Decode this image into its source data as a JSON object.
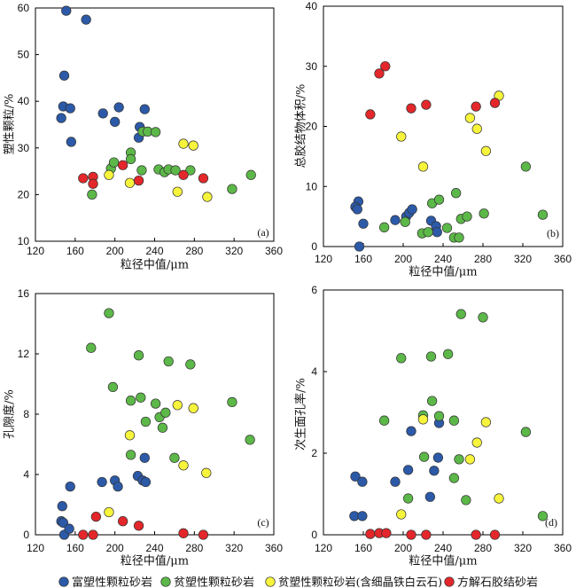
{
  "legend_placement": "bottom",
  "legend": [
    {
      "label": "富塑性颗粒砂岩",
      "color": "#2c5aa8"
    },
    {
      "label": "贫塑性颗粒砂岩",
      "color": "#5cb848"
    },
    {
      "label": "贫塑性颗粒砂岩(含细晶铁白云石)",
      "color": "#f7f43c"
    },
    {
      "label": "方解石胶结砂岩",
      "color": "#e3272b"
    }
  ],
  "chart_data": [
    {
      "type": "scatter",
      "panel_label": "(a)",
      "xlabel": "粒径中值/μm",
      "ylabel": "塑性颗粒/%",
      "xlim": [
        120,
        360
      ],
      "ylim": [
        10,
        60
      ],
      "xticks": [
        120,
        160,
        200,
        240,
        280,
        320,
        360
      ],
      "yticks": [
        10,
        20,
        30,
        40,
        50,
        60
      ],
      "grid": false,
      "series": [
        {
          "name": "富塑性颗粒砂岩",
          "points": [
            [
              151,
              59.4
            ],
            [
              171,
              57.5
            ],
            [
              149,
              45.5
            ],
            [
              148,
              38.9
            ],
            [
              155,
              38.5
            ],
            [
              146,
              36.4
            ],
            [
              156,
              31.3
            ],
            [
              188,
              37.4
            ],
            [
              204,
              38.7
            ],
            [
              200,
              35.6
            ],
            [
              230,
              38.3
            ],
            [
              225,
              34.5
            ],
            [
              224,
              32.2
            ]
          ]
        },
        {
          "name": "贫塑性颗粒砂岩",
          "points": [
            [
              196,
              25.6
            ],
            [
              199,
              26.9
            ],
            [
              177,
              20.0
            ],
            [
              216,
              29.0
            ],
            [
              216,
              27.6
            ],
            [
              228,
              33.5
            ],
            [
              233,
              33.5
            ],
            [
              241,
              33.4
            ],
            [
              227,
              25.2
            ],
            [
              244,
              25.4
            ],
            [
              250,
              24.8
            ],
            [
              254,
              25.4
            ],
            [
              261,
              25.2
            ],
            [
              276,
              25.2
            ],
            [
              318,
              21.2
            ],
            [
              337,
              24.2
            ]
          ]
        },
        {
          "name": "贫塑性颗粒砂岩(含细晶铁白云石)",
          "points": [
            [
              194,
              24.2
            ],
            [
              215,
              22.5
            ],
            [
              269,
              30.9
            ],
            [
              279,
              30.5
            ],
            [
              263,
              20.6
            ],
            [
              293,
              19.5
            ]
          ]
        },
        {
          "name": "方解石胶结砂岩",
          "points": [
            [
              168,
              23.5
            ],
            [
              178,
              23.8
            ],
            [
              178,
              22.3
            ],
            [
              208,
              26.3
            ],
            [
              224,
              23.0
            ],
            [
              269,
              24.2
            ],
            [
              289,
              23.5
            ]
          ]
        }
      ]
    },
    {
      "type": "scatter",
      "panel_label": "(b)",
      "xlabel": "粒径中值/μm",
      "ylabel": "总胶结物体积/%",
      "xlim": [
        120,
        360
      ],
      "ylim": [
        0,
        40
      ],
      "xticks": [
        120,
        160,
        200,
        240,
        280,
        320,
        360
      ],
      "yticks": [
        0,
        10,
        20,
        30,
        40
      ],
      "grid": false,
      "series": [
        {
          "name": "富塑性颗粒砂岩",
          "points": [
            [
              155,
              7.5
            ],
            [
              152,
              6.6
            ],
            [
              154,
              6.2
            ],
            [
              160,
              3.8
            ],
            [
              156,
              0.0
            ],
            [
              192,
              4.4
            ],
            [
              203,
              5.0
            ],
            [
              206,
              5.6
            ],
            [
              209,
              6.2
            ],
            [
              228,
              4.3
            ],
            [
              233,
              3.4
            ],
            [
              234,
              2.4
            ]
          ]
        },
        {
          "name": "贫塑性颗粒砂岩",
          "points": [
            [
              181,
              3.2
            ],
            [
              202,
              4.1
            ],
            [
              219,
              2.2
            ],
            [
              225,
              2.4
            ],
            [
              229,
              7.2
            ],
            [
              236,
              7.8
            ],
            [
              244,
              3.1
            ],
            [
              251,
              1.5
            ],
            [
              256,
              1.5
            ],
            [
              253,
              8.9
            ],
            [
              258,
              4.6
            ],
            [
              264,
              5.0
            ],
            [
              281,
              5.5
            ],
            [
              323,
              13.3
            ],
            [
              340,
              5.3
            ]
          ]
        },
        {
          "name": "贫塑性颗粒砂岩(含细晶铁白云石)",
          "points": [
            [
              198,
              18.3
            ],
            [
              220,
              13.3
            ],
            [
              267,
              21.4
            ],
            [
              274,
              19.6
            ],
            [
              283,
              15.9
            ],
            [
              296,
              25.1
            ]
          ]
        },
        {
          "name": "方解石胶结砂岩",
          "points": [
            [
              167,
              22.0
            ],
            [
              176,
              28.8
            ],
            [
              182,
              30.0
            ],
            [
              208,
              23.0
            ],
            [
              223,
              23.6
            ],
            [
              273,
              23.3
            ],
            [
              292,
              23.9
            ]
          ]
        }
      ]
    },
    {
      "type": "scatter",
      "panel_label": "(c)",
      "xlabel": "粒径中值/μm",
      "ylabel": "孔隙度/%",
      "xlim": [
        120,
        360
      ],
      "ylim": [
        0,
        16
      ],
      "xticks": [
        120,
        160,
        200,
        240,
        280,
        320,
        360
      ],
      "yticks": [
        0,
        4,
        8,
        12,
        16
      ],
      "grid": false,
      "series": [
        {
          "name": "富塑性颗粒砂岩",
          "points": [
            [
              147,
              1.9
            ],
            [
              146,
              0.9
            ],
            [
              148,
              0.8
            ],
            [
              149,
              0.0
            ],
            [
              154,
              0.4
            ],
            [
              155,
              3.2
            ],
            [
              187,
              3.5
            ],
            [
              200,
              3.6
            ],
            [
              203,
              3.2
            ],
            [
              223,
              3.9
            ],
            [
              228,
              3.6
            ],
            [
              230,
              5.1
            ],
            [
              231,
              3.5
            ]
          ]
        },
        {
          "name": "贫塑性颗粒砂岩",
          "points": [
            [
              176,
              12.4
            ],
            [
              194,
              14.7
            ],
            [
              198,
              9.8
            ],
            [
              216,
              8.9
            ],
            [
              216,
              5.3
            ],
            [
              224,
              11.9
            ],
            [
              226,
              9.1
            ],
            [
              231,
              7.5
            ],
            [
              241,
              8.7
            ],
            [
              245,
              7.8
            ],
            [
              248,
              7.1
            ],
            [
              251,
              8.1
            ],
            [
              254,
              11.5
            ],
            [
              260,
              5.1
            ],
            [
              276,
              11.3
            ],
            [
              318,
              8.8
            ],
            [
              336,
              6.3
            ]
          ]
        },
        {
          "name": "贫塑性颗粒砂岩(含细晶铁白云石)",
          "points": [
            [
              215,
              6.6
            ],
            [
              194,
              1.5
            ],
            [
              263,
              8.6
            ],
            [
              269,
              4.6
            ],
            [
              279,
              8.4
            ],
            [
              292,
              4.1
            ]
          ]
        },
        {
          "name": "方解石胶结砂岩",
          "points": [
            [
              168,
              0.0
            ],
            [
              178,
              0.0
            ],
            [
              181,
              1.2
            ],
            [
              208,
              0.9
            ],
            [
              224,
              0.6
            ],
            [
              269,
              0.1
            ],
            [
              289,
              0.0
            ]
          ]
        }
      ]
    },
    {
      "type": "scatter",
      "panel_label": "(d)",
      "xlabel": "粒径中值/μm",
      "ylabel": "次生面孔率/%",
      "xlim": [
        120,
        360
      ],
      "ylim": [
        0,
        6
      ],
      "xticks": [
        120,
        160,
        200,
        240,
        280,
        320,
        360
      ],
      "yticks": [
        0,
        2,
        4,
        6
      ],
      "grid": false,
      "series": [
        {
          "name": "富塑性颗粒砂岩",
          "points": [
            [
              152,
              1.43
            ],
            [
              159,
              1.3
            ],
            [
              151,
              0.46
            ],
            [
              159,
              0.46
            ],
            [
              192,
              1.3
            ],
            [
              205,
              1.59
            ],
            [
              208,
              2.54
            ],
            [
              227,
              0.93
            ],
            [
              231,
              1.57
            ],
            [
              235,
              1.89
            ],
            [
              236,
              2.74
            ]
          ]
        },
        {
          "name": "贫塑性颗粒砂岩",
          "points": [
            [
              181,
              2.8
            ],
            [
              198,
              4.33
            ],
            [
              205,
              0.89
            ],
            [
              220,
              2.93
            ],
            [
              221,
              1.91
            ],
            [
              228,
              4.37
            ],
            [
              229,
              3.28
            ],
            [
              236,
              2.91
            ],
            [
              245,
              4.43
            ],
            [
              251,
              2.8
            ],
            [
              251,
              1.39
            ],
            [
              256,
              1.85
            ],
            [
              258,
              5.41
            ],
            [
              263,
              0.85
            ],
            [
              280,
              5.33
            ],
            [
              323,
              2.52
            ],
            [
              340,
              0.46
            ]
          ]
        },
        {
          "name": "贫塑性颗粒砂岩(含细晶铁白云石)",
          "points": [
            [
              198,
              0.5
            ],
            [
              220,
              2.83
            ],
            [
              267,
              1.85
            ],
            [
              274,
              2.26
            ],
            [
              283,
              2.76
            ],
            [
              296,
              0.89
            ]
          ]
        },
        {
          "name": "方解石胶结砂岩",
          "points": [
            [
              167,
              0.02
            ],
            [
              176,
              0.04
            ],
            [
              183,
              0.04
            ],
            [
              208,
              0.0
            ],
            [
              223,
              0.0
            ],
            [
              273,
              0.0
            ],
            [
              292,
              0.0
            ]
          ]
        }
      ]
    }
  ]
}
